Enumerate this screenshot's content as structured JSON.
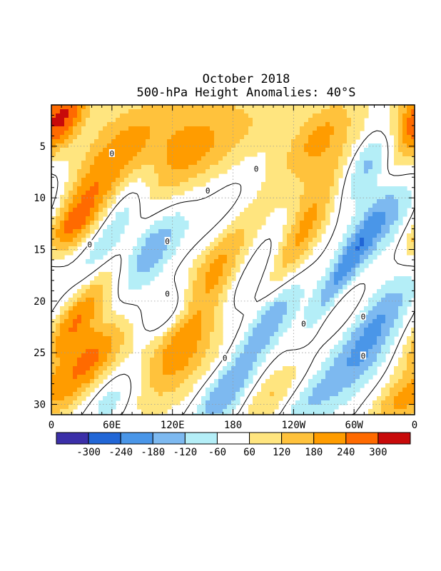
{
  "chart_data": {
    "type": "heatmap",
    "title": "October 2018",
    "subtitle": "500-hPa Height Anomalies: 40°S",
    "x_tick_labels": [
      "0",
      "60E",
      "120E",
      "180",
      "120W",
      "60W",
      "0"
    ],
    "x_tick_longitudes_east": [
      0,
      60,
      120,
      180,
      240,
      300,
      360
    ],
    "y_tick_labels": [
      "5",
      "10",
      "15",
      "20",
      "25",
      "30"
    ],
    "y_tick_days": [
      5,
      10,
      15,
      20,
      25,
      30
    ],
    "xlim_longitude_east": [
      0,
      360
    ],
    "ylim_day": [
      1,
      31
    ],
    "y_axis_inverted": true,
    "grid": "dotted",
    "colorbar": {
      "levels": [
        -300,
        -240,
        -180,
        -120,
        -60,
        60,
        120,
        180,
        240,
        300
      ],
      "tick_labels": [
        "-300",
        "-240",
        "-180",
        "-120",
        "-60",
        "60",
        "120",
        "180",
        "240",
        "300"
      ],
      "colors": [
        "#3b2fa8",
        "#2166d6",
        "#4a96e8",
        "#7db9f0",
        "#b4eef7",
        "#ffffff",
        "#ffe57f",
        "#ffc23c",
        "#ff9c00",
        "#ff6a00",
        "#c80a0a"
      ]
    },
    "contour_label": "0",
    "contour_label_positions": [
      {
        "lon": 60,
        "day": 5.7
      },
      {
        "lon": 203,
        "day": 7.2
      },
      {
        "lon": 155,
        "day": 9.3
      },
      {
        "lon": 38,
        "day": 14.5
      },
      {
        "lon": 115,
        "day": 14.2
      },
      {
        "lon": 115,
        "day": 19.3
      },
      {
        "lon": 250,
        "day": 22.2
      },
      {
        "lon": 309,
        "day": 21.5
      },
      {
        "lon": 172,
        "day": 25.5
      },
      {
        "lon": 309,
        "day": 25.3
      }
    ],
    "anomaly_features": [
      {
        "lon": 10,
        "day": 3,
        "value": 200,
        "sx": 14,
        "sy": 3
      },
      {
        "lon": 352,
        "day": 2,
        "value": 260,
        "sx": 18,
        "sy": 2.5
      },
      {
        "lon": 95,
        "day": 3,
        "value": 130,
        "sx": 45,
        "sy": 3
      },
      {
        "lon": 190,
        "day": 3,
        "value": 100,
        "sx": 40,
        "sy": 3.5
      },
      {
        "lon": 265,
        "day": 4,
        "value": 160,
        "sx": 18,
        "sy": 3
      },
      {
        "lon": 320,
        "day": 5.5,
        "value": -220,
        "sx": 16,
        "sy": 3.5
      },
      {
        "lon": 40,
        "day": 9,
        "value": 210,
        "sx": 22,
        "sy": 3.5
      },
      {
        "lon": 125,
        "day": 7,
        "value": 140,
        "sx": 28,
        "sy": 3
      },
      {
        "lon": 260,
        "day": 10,
        "value": 170,
        "sx": 20,
        "sy": 5
      },
      {
        "lon": 335,
        "day": 12,
        "value": -150,
        "sx": 22,
        "sy": 3
      },
      {
        "lon": 75,
        "day": 10,
        "value": -60,
        "sx": 14,
        "sy": 3
      },
      {
        "lon": 175,
        "day": 11,
        "value": -70,
        "sx": 20,
        "sy": 3
      },
      {
        "lon": 20,
        "day": 13,
        "value": 170,
        "sx": 16,
        "sy": 2
      },
      {
        "lon": 100,
        "day": 15,
        "value": -180,
        "sx": 15,
        "sy": 3
      },
      {
        "lon": 50,
        "day": 15,
        "value": -120,
        "sx": 12,
        "sy": 4
      },
      {
        "lon": 155,
        "day": 18,
        "value": 210,
        "sx": 18,
        "sy": 6
      },
      {
        "lon": 205,
        "day": 17,
        "value": -150,
        "sx": 16,
        "sy": 5
      },
      {
        "lon": 290,
        "day": 17,
        "value": -200,
        "sx": 10,
        "sy": 4
      },
      {
        "lon": 240,
        "day": 15,
        "value": 140,
        "sx": 14,
        "sy": 4
      },
      {
        "lon": 25,
        "day": 21.5,
        "value": 250,
        "sx": 16,
        "sy": 3.5
      },
      {
        "lon": 120,
        "day": 21,
        "value": -160,
        "sx": 18,
        "sy": 2
      },
      {
        "lon": 215,
        "day": 22,
        "value": -200,
        "sx": 14,
        "sy": 3
      },
      {
        "lon": 330,
        "day": 21,
        "value": -140,
        "sx": 16,
        "sy": 3
      },
      {
        "lon": 285,
        "day": 21,
        "value": 80,
        "sx": 12,
        "sy": 2
      },
      {
        "lon": 140,
        "day": 25,
        "value": 180,
        "sx": 25,
        "sy": 4
      },
      {
        "lon": 55,
        "day": 24,
        "value": 90,
        "sx": 22,
        "sy": 2
      },
      {
        "lon": 300,
        "day": 26,
        "value": -150,
        "sx": 22,
        "sy": 3
      },
      {
        "lon": 30,
        "day": 27,
        "value": 210,
        "sx": 18,
        "sy": 3
      },
      {
        "lon": 170,
        "day": 29,
        "value": -180,
        "sx": 16,
        "sy": 2.5
      },
      {
        "lon": 220,
        "day": 29,
        "value": 140,
        "sx": 16,
        "sy": 2.5
      },
      {
        "lon": 60,
        "day": 29.5,
        "value": -110,
        "sx": 16,
        "sy": 2
      },
      {
        "lon": 250,
        "day": 30,
        "value": -90,
        "sx": 18,
        "sy": 2
      },
      {
        "lon": 340,
        "day": 30,
        "value": 150,
        "sx": 16,
        "sy": 2
      }
    ]
  }
}
